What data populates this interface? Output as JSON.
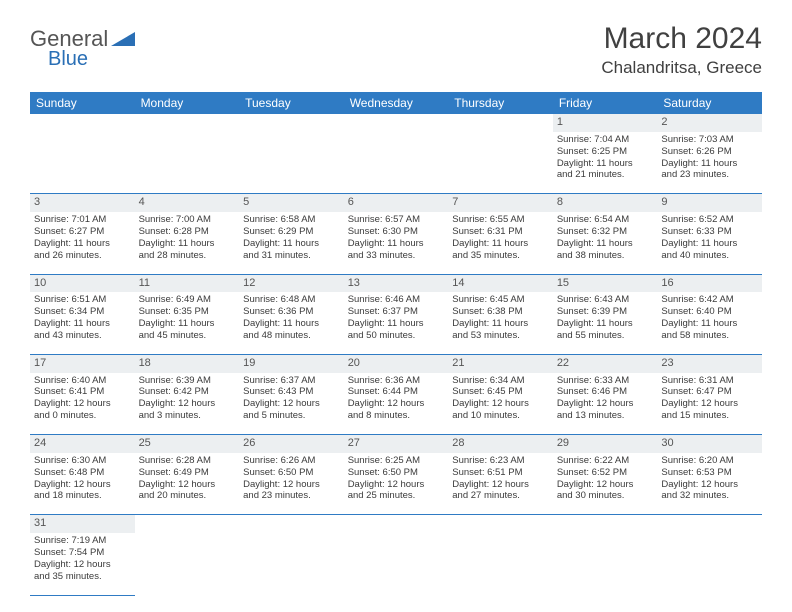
{
  "logo": {
    "text1": "General",
    "text2": "Blue",
    "tri_color": "#2a6fb5"
  },
  "title": "March 2024",
  "location": "Chalandritsa, Greece",
  "colors": {
    "header_bg": "#2f7bc4",
    "header_text": "#ffffff",
    "daynum_bg": "#eceff1",
    "border": "#2f7bc4",
    "text": "#3a3a3a"
  },
  "day_names": [
    "Sunday",
    "Monday",
    "Tuesday",
    "Wednesday",
    "Thursday",
    "Friday",
    "Saturday"
  ],
  "weeks": [
    {
      "nums": [
        "",
        "",
        "",
        "",
        "",
        "1",
        "2"
      ],
      "cells": [
        null,
        null,
        null,
        null,
        null,
        {
          "sr": "7:04 AM",
          "ss": "6:25 PM",
          "dh": 11,
          "dm": 21
        },
        {
          "sr": "7:03 AM",
          "ss": "6:26 PM",
          "dh": 11,
          "dm": 23
        }
      ]
    },
    {
      "nums": [
        "3",
        "4",
        "5",
        "6",
        "7",
        "8",
        "9"
      ],
      "cells": [
        {
          "sr": "7:01 AM",
          "ss": "6:27 PM",
          "dh": 11,
          "dm": 26
        },
        {
          "sr": "7:00 AM",
          "ss": "6:28 PM",
          "dh": 11,
          "dm": 28
        },
        {
          "sr": "6:58 AM",
          "ss": "6:29 PM",
          "dh": 11,
          "dm": 31
        },
        {
          "sr": "6:57 AM",
          "ss": "6:30 PM",
          "dh": 11,
          "dm": 33
        },
        {
          "sr": "6:55 AM",
          "ss": "6:31 PM",
          "dh": 11,
          "dm": 35
        },
        {
          "sr": "6:54 AM",
          "ss": "6:32 PM",
          "dh": 11,
          "dm": 38
        },
        {
          "sr": "6:52 AM",
          "ss": "6:33 PM",
          "dh": 11,
          "dm": 40
        }
      ]
    },
    {
      "nums": [
        "10",
        "11",
        "12",
        "13",
        "14",
        "15",
        "16"
      ],
      "cells": [
        {
          "sr": "6:51 AM",
          "ss": "6:34 PM",
          "dh": 11,
          "dm": 43
        },
        {
          "sr": "6:49 AM",
          "ss": "6:35 PM",
          "dh": 11,
          "dm": 45
        },
        {
          "sr": "6:48 AM",
          "ss": "6:36 PM",
          "dh": 11,
          "dm": 48
        },
        {
          "sr": "6:46 AM",
          "ss": "6:37 PM",
          "dh": 11,
          "dm": 50
        },
        {
          "sr": "6:45 AM",
          "ss": "6:38 PM",
          "dh": 11,
          "dm": 53
        },
        {
          "sr": "6:43 AM",
          "ss": "6:39 PM",
          "dh": 11,
          "dm": 55
        },
        {
          "sr": "6:42 AM",
          "ss": "6:40 PM",
          "dh": 11,
          "dm": 58
        }
      ]
    },
    {
      "nums": [
        "17",
        "18",
        "19",
        "20",
        "21",
        "22",
        "23"
      ],
      "cells": [
        {
          "sr": "6:40 AM",
          "ss": "6:41 PM",
          "dh": 12,
          "dm": 0
        },
        {
          "sr": "6:39 AM",
          "ss": "6:42 PM",
          "dh": 12,
          "dm": 3
        },
        {
          "sr": "6:37 AM",
          "ss": "6:43 PM",
          "dh": 12,
          "dm": 5
        },
        {
          "sr": "6:36 AM",
          "ss": "6:44 PM",
          "dh": 12,
          "dm": 8
        },
        {
          "sr": "6:34 AM",
          "ss": "6:45 PM",
          "dh": 12,
          "dm": 10
        },
        {
          "sr": "6:33 AM",
          "ss": "6:46 PM",
          "dh": 12,
          "dm": 13
        },
        {
          "sr": "6:31 AM",
          "ss": "6:47 PM",
          "dh": 12,
          "dm": 15
        }
      ]
    },
    {
      "nums": [
        "24",
        "25",
        "26",
        "27",
        "28",
        "29",
        "30"
      ],
      "cells": [
        {
          "sr": "6:30 AM",
          "ss": "6:48 PM",
          "dh": 12,
          "dm": 18
        },
        {
          "sr": "6:28 AM",
          "ss": "6:49 PM",
          "dh": 12,
          "dm": 20
        },
        {
          "sr": "6:26 AM",
          "ss": "6:50 PM",
          "dh": 12,
          "dm": 23
        },
        {
          "sr": "6:25 AM",
          "ss": "6:50 PM",
          "dh": 12,
          "dm": 25
        },
        {
          "sr": "6:23 AM",
          "ss": "6:51 PM",
          "dh": 12,
          "dm": 27
        },
        {
          "sr": "6:22 AM",
          "ss": "6:52 PM",
          "dh": 12,
          "dm": 30
        },
        {
          "sr": "6:20 AM",
          "ss": "6:53 PM",
          "dh": 12,
          "dm": 32
        }
      ]
    },
    {
      "nums": [
        "31",
        "",
        "",
        "",
        "",
        "",
        ""
      ],
      "cells": [
        {
          "sr": "7:19 AM",
          "ss": "7:54 PM",
          "dh": 12,
          "dm": 35
        },
        null,
        null,
        null,
        null,
        null,
        null
      ]
    }
  ]
}
